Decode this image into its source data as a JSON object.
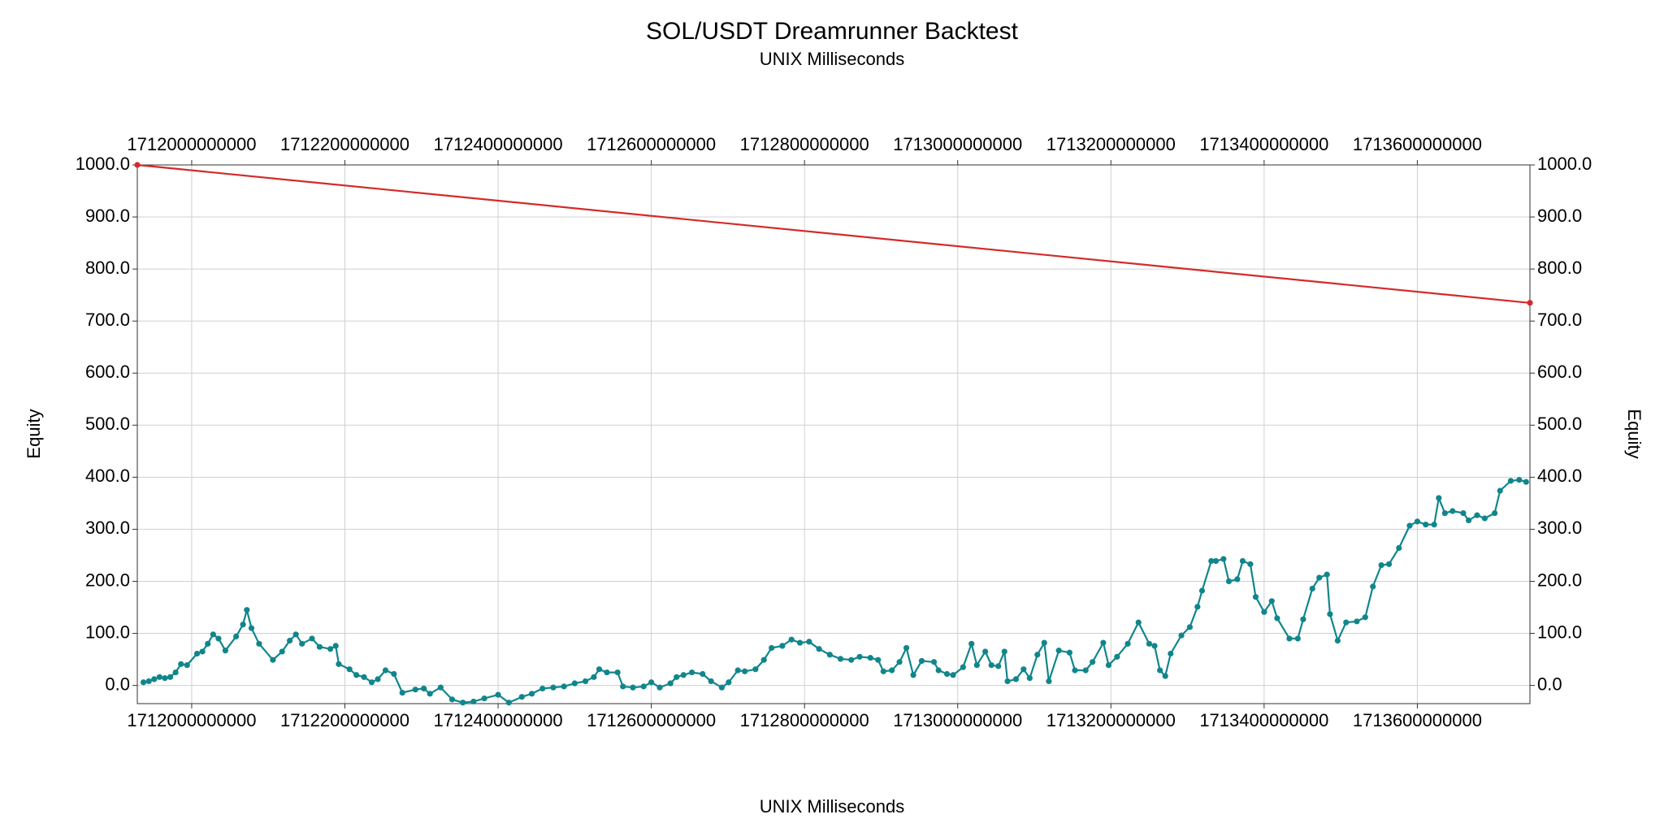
{
  "chart_data": {
    "type": "line",
    "title": "SOL/USDT Dreamrunner Backtest",
    "x2label": "UNIX Milliseconds",
    "xlabel": "UNIX Milliseconds",
    "ylabel": "Equity",
    "y2label": "Equity",
    "grid": true,
    "xlim": [
      1711929000000,
      1713747000000
    ],
    "xticks": [
      1712000000000,
      1712200000000,
      1712400000000,
      1712600000000,
      1712800000000,
      1713000000000,
      1713200000000,
      1713400000000,
      1713600000000
    ],
    "x2lim": [
      1711929000000,
      1713747000000
    ],
    "x2ticks": [
      1712000000000,
      1712200000000,
      1712400000000,
      1712600000000,
      1712800000000,
      1713000000000,
      1713200000000,
      1713400000000,
      1713600000000
    ],
    "ylim": [
      -35,
      1000
    ],
    "yticks": [
      {
        "value": 0,
        "label": "0.0"
      },
      {
        "value": 100,
        "label": "100.0"
      },
      {
        "value": 200,
        "label": "200.0"
      },
      {
        "value": 300,
        "label": "300.0"
      },
      {
        "value": 400,
        "label": "400.0"
      },
      {
        "value": 500,
        "label": "500.0"
      },
      {
        "value": 600,
        "label": "600.0"
      },
      {
        "value": 700,
        "label": "700.0"
      },
      {
        "value": 800,
        "label": "800.0"
      },
      {
        "value": 900,
        "label": "900.0"
      },
      {
        "value": 1000,
        "label": "1000.0"
      }
    ],
    "y2lim": [
      -35,
      1000
    ],
    "y2ticks": [
      {
        "value": 0,
        "label": "0.0"
      },
      {
        "value": 100,
        "label": "100.0"
      },
      {
        "value": 200,
        "label": "200.0"
      },
      {
        "value": 300,
        "label": "300.0"
      },
      {
        "value": 400,
        "label": "400.0"
      },
      {
        "value": 500,
        "label": "500.0"
      },
      {
        "value": 600,
        "label": "600.0"
      },
      {
        "value": 700,
        "label": "700.0"
      },
      {
        "value": 800,
        "label": "800.0"
      },
      {
        "value": 900,
        "label": "900.0"
      },
      {
        "value": 1000,
        "label": "1000.0"
      }
    ],
    "series": [
      {
        "color": "#d42a2a",
        "x": [
          1711929000000,
          1713747000000
        ],
        "values": [
          1000,
          735
        ]
      },
      {
        "color": "#10868c",
        "x": [
          1711937000000,
          1711944000000,
          1711951000000,
          1711958000000,
          1711965000000,
          1711972000000,
          1711979000000,
          1711986000000,
          1711994000000,
          1712007000000,
          1712014000000,
          1712021000000,
          1712028000000,
          1712035000000,
          1712044000000,
          1712058000000,
          1712067000000,
          1712072000000,
          1712078000000,
          1712088000000,
          1712106000000,
          1712118000000,
          1712128000000,
          1712136000000,
          1712144000000,
          1712157000000,
          1712167000000,
          1712181000000,
          1712188000000,
          1712192000000,
          1712206000000,
          1712215000000,
          1712225000000,
          1712235000000,
          1712243000000,
          1712253000000,
          1712264000000,
          1712275000000,
          1712292000000,
          1712303000000,
          1712311000000,
          1712325000000,
          1712340000000,
          1712354000000,
          1712368000000,
          1712382000000,
          1712400000000,
          1712414000000,
          1712431000000,
          1712444000000,
          1712458000000,
          1712472000000,
          1712486000000,
          1712500000000,
          1712514000000,
          1712525000000,
          1712532000000,
          1712542000000,
          1712556000000,
          1712563000000,
          1712576000000,
          1712590000000,
          1712600000000,
          1712611000000,
          1712625000000,
          1712633000000,
          1712642000000,
          1712653000000,
          1712667000000,
          1712678000000,
          1712692000000,
          1712701000000,
          1712713000000,
          1712722000000,
          1712736000000,
          1712747000000,
          1712757000000,
          1712771000000,
          1712783000000,
          1712794000000,
          1712806000000,
          1712819000000,
          1712833000000,
          1712847000000,
          1712861000000,
          1712872000000,
          1712886000000,
          1712896000000,
          1712903000000,
          1712914000000,
          1712924000000,
          1712933000000,
          1712942000000,
          1712953000000,
          1712969000000,
          1712975000000,
          1712986000000,
          1712994000000,
          1713007000000,
          1713018000000,
          1713025000000,
          1713036000000,
          1713044000000,
          1713053000000,
          1713061000000,
          1713065000000,
          1713076000000,
          1713086000000,
          1713094000000,
          1713104000000,
          1713113000000,
          1713119000000,
          1713132000000,
          1713146000000,
          1713153000000,
          1713167000000,
          1713176000000,
          1713190000000,
          1713197000000,
          1713208000000,
          1713222000000,
          1713236000000,
          1713250000000,
          1713257000000,
          1713264000000,
          1713271000000,
          1713278000000,
          1713292000000,
          1713303000000,
          1713313000000,
          1713319000000,
          1713331000000,
          1713337000000,
          1713347000000,
          1713354000000,
          1713365000000,
          1713372000000,
          1713382000000,
          1713389000000,
          1713400000000,
          1713410000000,
          1713417000000,
          1713433000000,
          1713444000000,
          1713451000000,
          1713463000000,
          1713472000000,
          1713482000000,
          1713486000000,
          1713496000000,
          1713507000000,
          1713521000000,
          1713532000000,
          1713542000000,
          1713553000000,
          1713563000000,
          1713576000000,
          1713590000000,
          1713600000000,
          1713611000000,
          1713622000000,
          1713628000000,
          1713636000000,
          1713646000000,
          1713660000000,
          1713667000000,
          1713678000000,
          1713688000000,
          1713701000000,
          1713708000000,
          1713722000000,
          1713733000000,
          1713742000000
        ],
        "values": [
          6,
          8,
          12,
          16,
          14,
          16,
          25,
          41,
          39,
          61,
          65,
          80,
          98,
          90,
          67,
          94,
          117,
          145,
          110,
          80,
          49,
          65,
          86,
          98,
          80,
          90,
          74,
          70,
          76,
          41,
          31,
          20,
          16,
          6,
          12,
          29,
          22,
          -14,
          -8,
          -6,
          -16,
          -4,
          -27,
          -33,
          -31,
          -25,
          -18,
          -33,
          -22,
          -16,
          -6,
          -4,
          -2,
          4,
          8,
          16,
          31,
          25,
          25,
          -2,
          -4,
          -2,
          6,
          -4,
          4,
          16,
          20,
          25,
          22,
          8,
          -4,
          6,
          29,
          27,
          31,
          49,
          72,
          76,
          88,
          82,
          84,
          70,
          59,
          51,
          49,
          55,
          53,
          49,
          27,
          29,
          45,
          72,
          20,
          47,
          45,
          29,
          22,
          20,
          35,
          80,
          39,
          65,
          39,
          37,
          65,
          8,
          12,
          31,
          14,
          59,
          82,
          8,
          67,
          63,
          29,
          29,
          45,
          82,
          39,
          55,
          80,
          121,
          80,
          76,
          29,
          18,
          61,
          96,
          112,
          151,
          182,
          239,
          239,
          243,
          200,
          204,
          239,
          233,
          170,
          141,
          162,
          129,
          90,
          90,
          127,
          186,
          207,
          213,
          137,
          86,
          121,
          123,
          131,
          190,
          231,
          233,
          264,
          307,
          315,
          309,
          309,
          360,
          331,
          335,
          331,
          317,
          327,
          321,
          331,
          374,
          393,
          395,
          391
        ]
      }
    ]
  }
}
